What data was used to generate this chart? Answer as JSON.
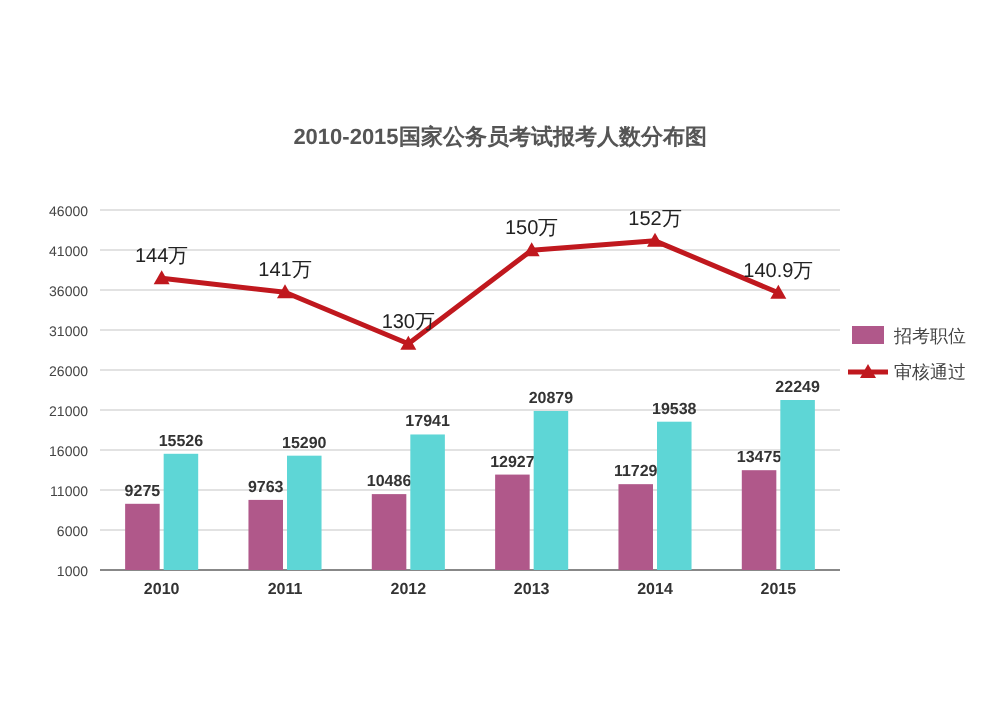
{
  "chart_data": {
    "type": "bar",
    "title": "2010-2015国家公务员考试报考人数分布图",
    "categories": [
      "2010",
      "2011",
      "2012",
      "2013",
      "2014",
      "2015"
    ],
    "series": [
      {
        "name": "招考职位",
        "color": "#b0588a",
        "values": [
          9275,
          9763,
          10486,
          12927,
          11729,
          13475
        ]
      },
      {
        "color": "#5ed6d6",
        "values": [
          15526,
          15290,
          17941,
          20879,
          19538,
          22249
        ]
      },
      {
        "name": "审核通过",
        "type": "line",
        "axis": "y2",
        "color": "#c0181e",
        "marker": "triangle",
        "values": [
          144,
          141,
          130,
          150,
          152,
          140.9
        ],
        "value_labels": [
          "144万",
          "141万",
          "130万",
          "150万",
          "152万",
          "140.9万"
        ]
      }
    ],
    "ylim": [
      1000,
      46000
    ],
    "yticks": [
      1000,
      6000,
      11000,
      16000,
      21000,
      26000,
      31000,
      36000,
      41000,
      46000
    ],
    "tick_labels": "xy",
    "data_labels": true,
    "grid": "y",
    "legend": "right"
  }
}
